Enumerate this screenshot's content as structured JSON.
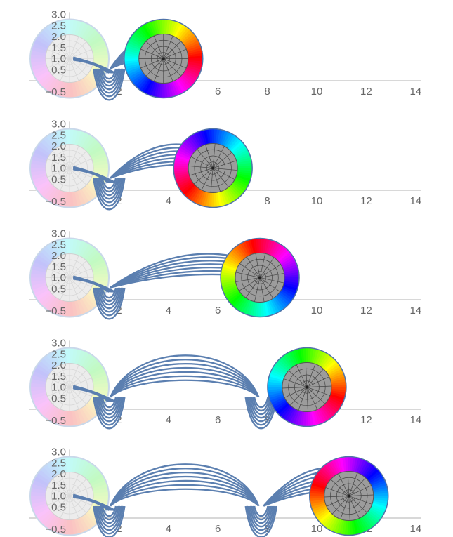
{
  "chart_data": {
    "type": "diagram",
    "panels": [
      {
        "wheel_x": 3.8,
        "wheel_rotation_deg": 0
      },
      {
        "wheel_x": 5.8,
        "wheel_rotation_deg": 140
      },
      {
        "wheel_x": 7.7,
        "wheel_rotation_deg": 260
      },
      {
        "wheel_x": 9.6,
        "wheel_rotation_deg": 20
      },
      {
        "wheel_x": 11.3,
        "wheel_rotation_deg": 200
      }
    ],
    "x_ticks": [
      2,
      4,
      6,
      8,
      10,
      12,
      14
    ],
    "x_tick_labels": [
      "2",
      "4",
      "6",
      "8",
      "10",
      "12",
      "14"
    ],
    "y_ticks": [
      -0.5,
      0.5,
      1.0,
      1.5,
      2.0,
      2.5,
      3.0
    ],
    "y_tick_labels": [
      "−0.5",
      "0.5",
      "1.0",
      "1.5",
      "2.0",
      "2.5",
      "3.0"
    ],
    "x_range": [
      0,
      14
    ],
    "y_range": [
      -0.5,
      3.0
    ],
    "colors": {
      "curve": "#5b7fb0",
      "axis": "#b0b0b0",
      "tick": "#666666",
      "hub": "#9a9a9a"
    }
  }
}
